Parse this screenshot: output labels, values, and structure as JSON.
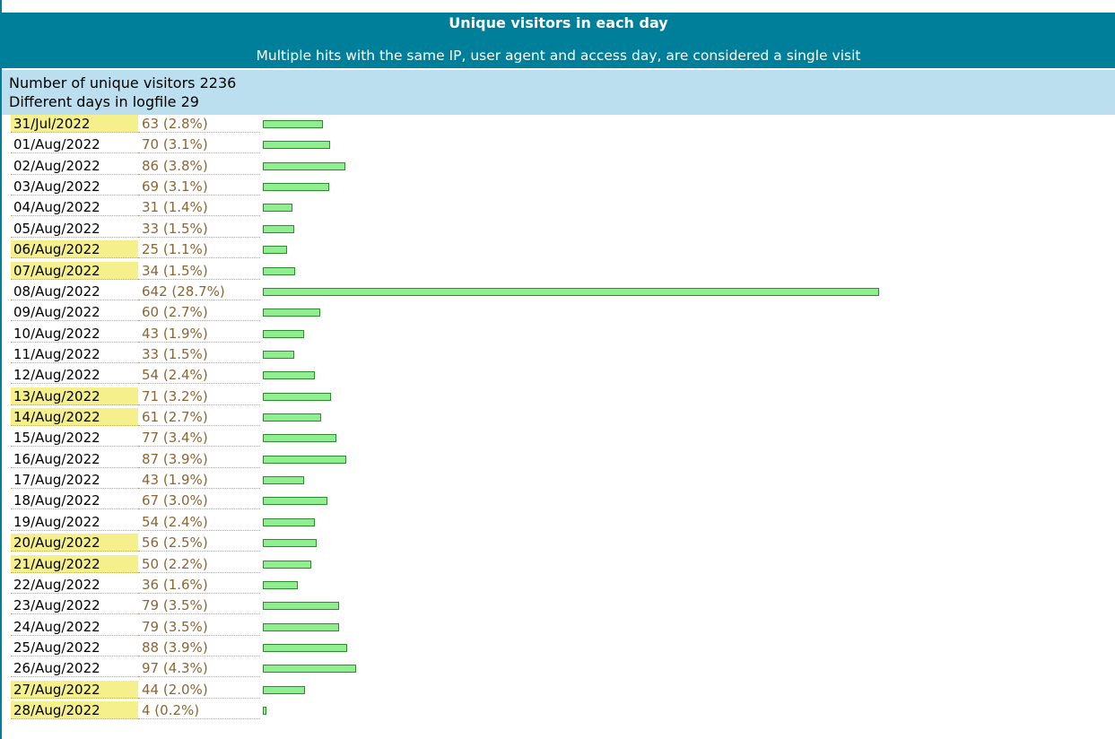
{
  "header": {
    "title": "Unique visitors in each day",
    "subtitle": "Multiple hits with the same IP, user agent and access day, are considered a single visit"
  },
  "summary": [
    "Number of unique visitors 2236",
    "Different days in logfile 29"
  ],
  "table": {
    "bar_color": "#90ee90",
    "highlight_color": "#f5f08c",
    "rows": [
      {
        "date": "31/Jul/2022",
        "visitors": 63,
        "label": "63 (2.8%)",
        "highlight": true
      },
      {
        "date": "01/Aug/2022",
        "visitors": 70,
        "label": "70 (3.1%)",
        "highlight": false
      },
      {
        "date": "02/Aug/2022",
        "visitors": 86,
        "label": "86 (3.8%)",
        "highlight": false
      },
      {
        "date": "03/Aug/2022",
        "visitors": 69,
        "label": "69 (3.1%)",
        "highlight": false
      },
      {
        "date": "04/Aug/2022",
        "visitors": 31,
        "label": "31 (1.4%)",
        "highlight": false
      },
      {
        "date": "05/Aug/2022",
        "visitors": 33,
        "label": "33 (1.5%)",
        "highlight": false
      },
      {
        "date": "06/Aug/2022",
        "visitors": 25,
        "label": "25 (1.1%)",
        "highlight": true
      },
      {
        "date": "07/Aug/2022",
        "visitors": 34,
        "label": "34 (1.5%)",
        "highlight": true
      },
      {
        "date": "08/Aug/2022",
        "visitors": 642,
        "label": "642 (28.7%)",
        "highlight": false
      },
      {
        "date": "09/Aug/2022",
        "visitors": 60,
        "label": "60 (2.7%)",
        "highlight": false
      },
      {
        "date": "10/Aug/2022",
        "visitors": 43,
        "label": "43 (1.9%)",
        "highlight": false
      },
      {
        "date": "11/Aug/2022",
        "visitors": 33,
        "label": "33 (1.5%)",
        "highlight": false
      },
      {
        "date": "12/Aug/2022",
        "visitors": 54,
        "label": "54 (2.4%)",
        "highlight": false
      },
      {
        "date": "13/Aug/2022",
        "visitors": 71,
        "label": "71 (3.2%)",
        "highlight": true
      },
      {
        "date": "14/Aug/2022",
        "visitors": 61,
        "label": "61 (2.7%)",
        "highlight": true
      },
      {
        "date": "15/Aug/2022",
        "visitors": 77,
        "label": "77 (3.4%)",
        "highlight": false
      },
      {
        "date": "16/Aug/2022",
        "visitors": 87,
        "label": "87 (3.9%)",
        "highlight": false
      },
      {
        "date": "17/Aug/2022",
        "visitors": 43,
        "label": "43 (1.9%)",
        "highlight": false
      },
      {
        "date": "18/Aug/2022",
        "visitors": 67,
        "label": "67 (3.0%)",
        "highlight": false
      },
      {
        "date": "19/Aug/2022",
        "visitors": 54,
        "label": "54 (2.4%)",
        "highlight": false
      },
      {
        "date": "20/Aug/2022",
        "visitors": 56,
        "label": "56 (2.5%)",
        "highlight": true
      },
      {
        "date": "21/Aug/2022",
        "visitors": 50,
        "label": "50 (2.2%)",
        "highlight": true
      },
      {
        "date": "22/Aug/2022",
        "visitors": 36,
        "label": "36 (1.6%)",
        "highlight": false
      },
      {
        "date": "23/Aug/2022",
        "visitors": 79,
        "label": "79 (3.5%)",
        "highlight": false
      },
      {
        "date": "24/Aug/2022",
        "visitors": 79,
        "label": "79 (3.5%)",
        "highlight": false
      },
      {
        "date": "25/Aug/2022",
        "visitors": 88,
        "label": "88 (3.9%)",
        "highlight": false
      },
      {
        "date": "26/Aug/2022",
        "visitors": 97,
        "label": "97 (4.3%)",
        "highlight": false
      },
      {
        "date": "27/Aug/2022",
        "visitors": 44,
        "label": "44 (2.0%)",
        "highlight": true
      },
      {
        "date": "28/Aug/2022",
        "visitors": 4,
        "label": "4 (0.2%)",
        "highlight": true
      }
    ]
  }
}
